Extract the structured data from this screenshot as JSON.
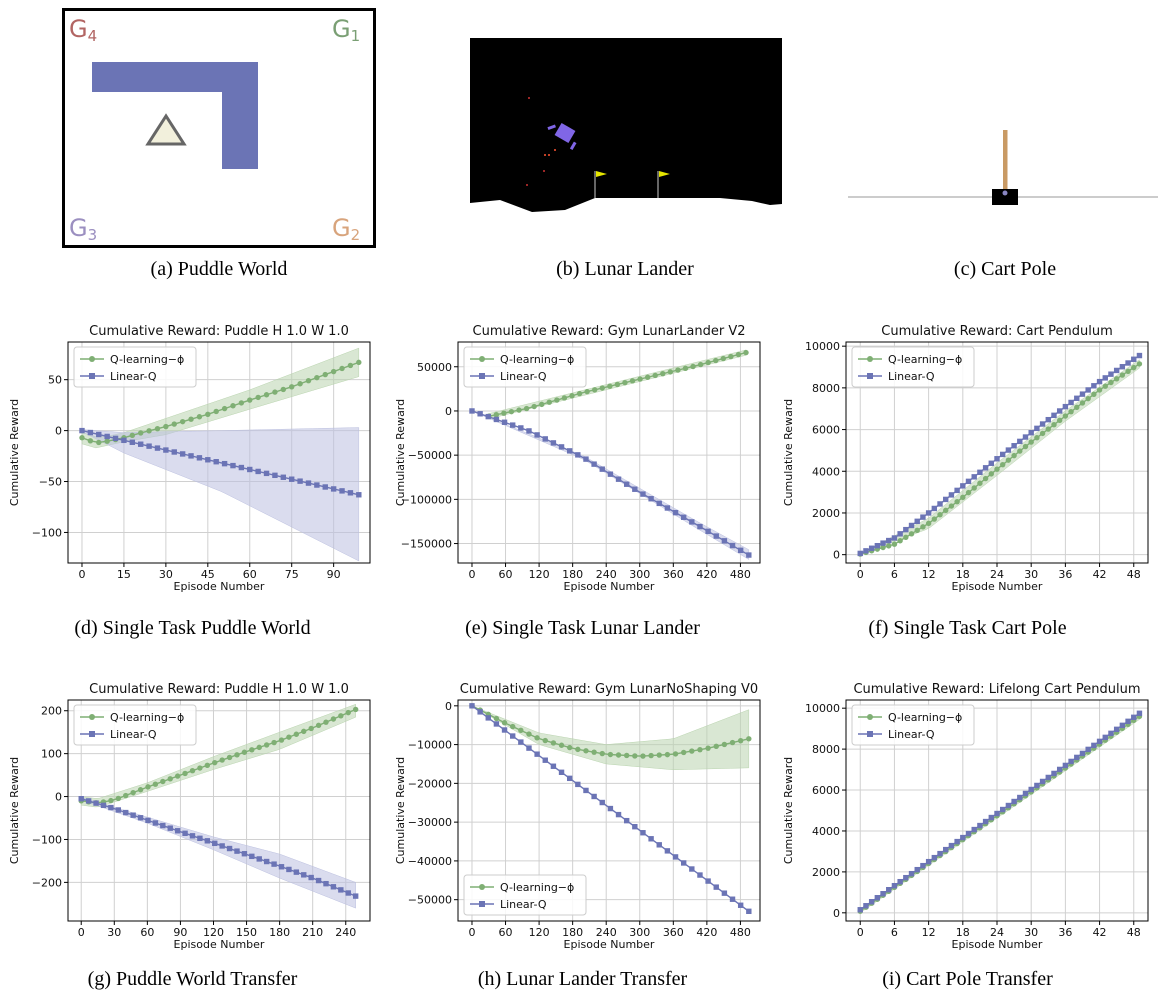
{
  "figure": {
    "colors": {
      "q": "#7faf74",
      "q_band": "#b9d4ae",
      "lin": "#6b74b5",
      "lin_band": "#bcc0e0"
    },
    "panels": [
      {
        "id": "a",
        "caption": "(a) Puddle World",
        "goals": [
          "G4",
          "G1",
          "G3",
          "G2"
        ],
        "goal_colors": [
          "#b26563",
          "#7a9f74",
          "#9b8fc0",
          "#d8a47c"
        ]
      },
      {
        "id": "b",
        "caption": "(b) Lunar Lander"
      },
      {
        "id": "c",
        "caption": "(c) Cart Pole"
      }
    ]
  },
  "chart_data": [
    {
      "id": "d",
      "type": "line",
      "caption": "(d) Single Task Puddle World",
      "title": "Cumulative Reward: Puddle H 1.0 W 1.0",
      "xlabel": "Episode Number",
      "ylabel": "Cumulative Reward",
      "xlim": [
        -5,
        103
      ],
      "ylim": [
        -130,
        87
      ],
      "xticks": [
        0,
        15,
        30,
        45,
        60,
        75,
        90
      ],
      "yticks": [
        50,
        0,
        -50,
        -100
      ],
      "legend_position": "upper left",
      "grid": true,
      "series": [
        {
          "name": "Q-learning−ϕ",
          "marker": "circle",
          "x_start": 0,
          "x_end": 99,
          "n": 34,
          "values": [
            [
              0,
              -7
            ],
            [
              5,
              -12
            ],
            [
              10,
              -10
            ],
            [
              15,
              -7
            ],
            [
              20,
              -3
            ],
            [
              30,
              4
            ],
            [
              45,
              16
            ],
            [
              60,
              30
            ],
            [
              75,
              43
            ],
            [
              90,
              58
            ],
            [
              99,
              67
            ]
          ],
          "band": [
            [
              0,
              -13,
              -2
            ],
            [
              5,
              -17,
              -6
            ],
            [
              10,
              -14,
              -5
            ],
            [
              15,
              -11,
              -2
            ],
            [
              30,
              -4,
              12
            ],
            [
              60,
              21,
              40
            ],
            [
              99,
              53,
              81
            ]
          ]
        },
        {
          "name": "Linear-Q",
          "marker": "square",
          "x_start": 0,
          "x_end": 99,
          "n": 34,
          "values": [
            [
              0,
              0
            ],
            [
              99,
              -63
            ]
          ],
          "band": [
            [
              0,
              -1,
              1
            ],
            [
              15,
              -22,
              -2
            ],
            [
              50,
              -60,
              0
            ],
            [
              99,
              -128,
              3
            ]
          ]
        }
      ]
    },
    {
      "id": "e",
      "type": "line",
      "caption": "(e) Single Task Lunar Lander",
      "title": "Cumulative Reward: Gym LunarLander V2",
      "xlabel": "Episode Number",
      "ylabel": "Cumulative Reward",
      "xlim": [
        -25,
        515
      ],
      "ylim": [
        -172000,
        78000
      ],
      "xticks": [
        0,
        60,
        120,
        180,
        240,
        300,
        360,
        420,
        480
      ],
      "yticks": [
        50000,
        0,
        -50000,
        -100000,
        -150000
      ],
      "legend_position": "upper left",
      "grid": true,
      "series": [
        {
          "name": "Q-learning−ϕ",
          "marker": "circle",
          "x_start": 30,
          "x_end": 490,
          "n": 35,
          "values": [
            [
              30,
              -6000
            ],
            [
              100,
              3000
            ],
            [
              200,
              21000
            ],
            [
              300,
              36000
            ],
            [
              400,
              51000
            ],
            [
              490,
              66000
            ]
          ],
          "band": [
            [
              30,
              -9000,
              -3000
            ],
            [
              490,
              63000,
              69000
            ]
          ]
        },
        {
          "name": "Linear-Q",
          "marker": "square",
          "x_start": 0,
          "x_end": 495,
          "n": 35,
          "values": [
            [
              0,
              0
            ],
            [
              100,
              -22000
            ],
            [
              200,
              -53000
            ],
            [
              300,
              -92000
            ],
            [
              400,
              -128000
            ],
            [
              495,
              -163000
            ]
          ],
          "band": [
            [
              0,
              0,
              0
            ],
            [
              200,
              -55000,
              -51000
            ],
            [
              400,
              -132000,
              -124000
            ],
            [
              495,
              -168000,
              -157000
            ]
          ]
        }
      ]
    },
    {
      "id": "f",
      "type": "line",
      "caption": "(f) Single Task Cart Pole",
      "title": "Cumulative Reward: Cart Pendulum",
      "xlabel": "Episode Number",
      "ylabel": "Cumulative Reward",
      "xlim": [
        -2.5,
        50.5
      ],
      "ylim": [
        -400,
        10200
      ],
      "xticks": [
        0,
        6,
        12,
        18,
        24,
        30,
        36,
        42,
        48
      ],
      "yticks": [
        10000,
        8000,
        6000,
        4000,
        2000,
        0
      ],
      "legend_position": "upper left",
      "grid": true,
      "series": [
        {
          "name": "Q-learning−ϕ",
          "marker": "circle",
          "x_start": 0,
          "x_end": 49,
          "n": 50,
          "values": [
            [
              0,
              30
            ],
            [
              6,
              500
            ],
            [
              12,
              1500
            ],
            [
              18,
              2750
            ],
            [
              24,
              4100
            ],
            [
              30,
              5400
            ],
            [
              36,
              6650
            ],
            [
              42,
              7900
            ],
            [
              49,
              9150
            ]
          ],
          "band": [
            [
              0,
              0,
              60
            ],
            [
              12,
              1250,
              1750
            ],
            [
              24,
              3800,
              4400
            ],
            [
              36,
              6400,
              6900
            ],
            [
              49,
              8950,
              9350
            ]
          ]
        },
        {
          "name": "Linear-Q",
          "marker": "square",
          "x_start": 0,
          "x_end": 49,
          "n": 50,
          "values": [
            [
              0,
              60
            ],
            [
              6,
              800
            ],
            [
              12,
              2000
            ],
            [
              18,
              3300
            ],
            [
              24,
              4600
            ],
            [
              30,
              5850
            ],
            [
              36,
              7100
            ],
            [
              42,
              8300
            ],
            [
              49,
              9550
            ]
          ]
        }
      ]
    },
    {
      "id": "g",
      "type": "line",
      "caption": "(g) Puddle World Transfer",
      "title": "Cumulative Reward: Puddle H 1.0 W 1.0",
      "xlabel": "Episode Number",
      "ylabel": "Cumulative Reward",
      "xlim": [
        -12,
        262
      ],
      "ylim": [
        -290,
        225
      ],
      "xticks": [
        0,
        30,
        60,
        90,
        120,
        150,
        180,
        210,
        240
      ],
      "yticks": [
        200,
        100,
        0,
        -100,
        -200
      ],
      "legend_position": "upper left",
      "grid": true,
      "series": [
        {
          "name": "Q-learning−ϕ",
          "marker": "circle",
          "x_start": 0,
          "x_end": 249,
          "n": 38,
          "values": [
            [
              0,
              -10
            ],
            [
              15,
              -15
            ],
            [
              30,
              -8
            ],
            [
              60,
              22
            ],
            [
              90,
              50
            ],
            [
              120,
              78
            ],
            [
              150,
              105
            ],
            [
              180,
              130
            ],
            [
              210,
              160
            ],
            [
              249,
              203
            ]
          ],
          "band": [
            [
              0,
              -20,
              0
            ],
            [
              15,
              -25,
              -5
            ],
            [
              60,
              12,
              32
            ],
            [
              120,
              63,
              93
            ],
            [
              180,
              110,
              150
            ],
            [
              249,
              185,
              215
            ]
          ]
        },
        {
          "name": "Linear-Q",
          "marker": "square",
          "x_start": 0,
          "x_end": 249,
          "n": 38,
          "values": [
            [
              0,
              -5
            ],
            [
              30,
              -28
            ],
            [
              60,
              -55
            ],
            [
              90,
              -82
            ],
            [
              120,
              -108
            ],
            [
              150,
              -135
            ],
            [
              180,
              -162
            ],
            [
              210,
              -190
            ],
            [
              249,
              -232
            ]
          ],
          "band": [
            [
              0,
              -8,
              -2
            ],
            [
              60,
              -62,
              -48
            ],
            [
              120,
              -124,
              -94
            ],
            [
              180,
              -190,
              -134
            ],
            [
              249,
              -260,
              -200
            ]
          ]
        }
      ]
    },
    {
      "id": "h",
      "type": "line",
      "caption": "(h) Lunar Lander Transfer",
      "title": "Cumulative Reward: Gym LunarNoShaping V0",
      "xlabel": "Episode Number",
      "ylabel": "Cumulative Reward",
      "xlim": [
        -25,
        515
      ],
      "ylim": [
        -55500,
        1500
      ],
      "xticks": [
        0,
        60,
        120,
        180,
        240,
        300,
        360,
        420,
        480
      ],
      "yticks": [
        0,
        -10000,
        -20000,
        -30000,
        -40000,
        -50000
      ],
      "legend_position": "lower left",
      "grid": true,
      "series": [
        {
          "name": "Q-learning−ϕ",
          "marker": "circle",
          "x_start": 0,
          "x_end": 495,
          "n": 35,
          "values": [
            [
              0,
              0
            ],
            [
              60,
              -4500
            ],
            [
              120,
              -8500
            ],
            [
              180,
              -11000
            ],
            [
              240,
              -12500
            ],
            [
              300,
              -13000
            ],
            [
              360,
              -12500
            ],
            [
              420,
              -11000
            ],
            [
              495,
              -8500
            ]
          ],
          "band": [
            [
              0,
              0,
              0
            ],
            [
              120,
              -10000,
              -7000
            ],
            [
              240,
              -15000,
              -10000
            ],
            [
              360,
              -16500,
              -8500
            ],
            [
              495,
              -16000,
              -1000
            ]
          ]
        },
        {
          "name": "Linear-Q",
          "marker": "square",
          "x_start": 0,
          "x_end": 495,
          "n": 35,
          "values": [
            [
              0,
              0
            ],
            [
              495,
              -53000
            ]
          ]
        }
      ]
    },
    {
      "id": "i",
      "type": "line",
      "caption": "(i) Cart Pole Transfer",
      "title": "Cumulative Reward: Lifelong Cart Pendulum",
      "xlabel": "Episode Number",
      "ylabel": "Cumulative Reward",
      "xlim": [
        -2.5,
        50.5
      ],
      "ylim": [
        -400,
        10400
      ],
      "xticks": [
        0,
        6,
        12,
        18,
        24,
        30,
        36,
        42,
        48
      ],
      "yticks": [
        10000,
        8000,
        6000,
        4000,
        2000,
        0
      ],
      "legend_position": "upper left",
      "grid": true,
      "series": [
        {
          "name": "Q-learning−ϕ",
          "marker": "circle",
          "x_start": 0,
          "x_end": 49,
          "n": 50,
          "values": [
            [
              0,
              80
            ],
            [
              49,
              9600
            ]
          ],
          "band": [
            [
              0,
              0,
              160
            ],
            [
              49,
              9450,
              9750
            ]
          ]
        },
        {
          "name": "Linear-Q",
          "marker": "square",
          "x_start": 0,
          "x_end": 49,
          "n": 50,
          "values": [
            [
              0,
              150
            ],
            [
              49,
              9750
            ]
          ]
        }
      ]
    }
  ]
}
